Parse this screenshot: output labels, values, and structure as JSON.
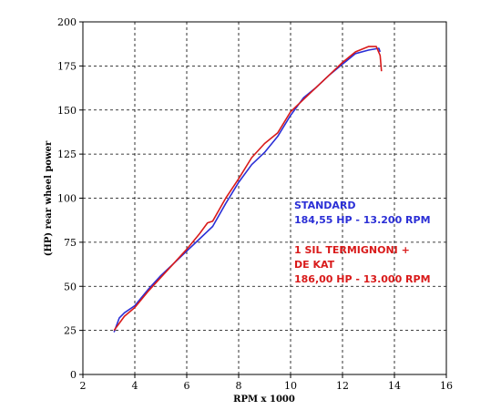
{
  "chart_data": {
    "type": "line",
    "xlabel": "RPM x 1000",
    "ylabel": "(HP) rear wheel power",
    "xlim": [
      2,
      16
    ],
    "ylim": [
      0,
      200
    ],
    "x_ticks": [
      "2",
      "4",
      "6",
      "8",
      "10",
      "12",
      "14",
      "16"
    ],
    "y_ticks": [
      "0",
      "25",
      "50",
      "75",
      "100",
      "125",
      "150",
      "175",
      "200"
    ],
    "x_tick_values": [
      2,
      4,
      6,
      8,
      10,
      12,
      14,
      16
    ],
    "y_tick_values": [
      0,
      25,
      50,
      75,
      100,
      125,
      150,
      175,
      200
    ],
    "grid": true,
    "series": [
      {
        "color": "#2b2fd6",
        "x": [
          3.2,
          3.4,
          3.6,
          4.0,
          4.5,
          5.0,
          5.5,
          6.0,
          6.5,
          7.0,
          7.5,
          8.0,
          8.5,
          9.0,
          9.5,
          10.0,
          10.5,
          11.0,
          11.5,
          12.0,
          12.5,
          13.0,
          13.2,
          13.4,
          13.45
        ],
        "y": [
          24,
          32,
          35,
          39,
          48,
          56,
          63,
          70,
          77,
          84,
          97,
          109,
          119,
          126,
          135,
          147,
          157,
          163,
          170,
          176,
          182,
          184,
          184.5,
          185,
          183
        ]
      },
      {
        "color": "#d91a1a",
        "x": [
          3.2,
          3.4,
          3.6,
          4.0,
          4.5,
          5.0,
          5.5,
          6.0,
          6.5,
          6.8,
          7.0,
          7.5,
          8.0,
          8.5,
          9.0,
          9.5,
          10.0,
          10.5,
          11.0,
          11.5,
          12.0,
          12.5,
          13.0,
          13.3,
          13.45,
          13.5
        ],
        "y": [
          25,
          29,
          33,
          38,
          47,
          55,
          63,
          71,
          80,
          86,
          87,
          100,
          111,
          123,
          131,
          137,
          149,
          156,
          163,
          170,
          177,
          183,
          186,
          186,
          181,
          172
        ]
      }
    ],
    "annotations": [
      {
        "color": "#2b2fd6",
        "lines": [
          "STANDARD",
          "184,55 HP - 13.200 RPM"
        ]
      },
      {
        "color": "#d91a1a",
        "lines": [
          "1 SIL TERMIGNONI +",
          "DE KAT",
          "186,00 HP - 13.000 RPM"
        ]
      }
    ]
  }
}
